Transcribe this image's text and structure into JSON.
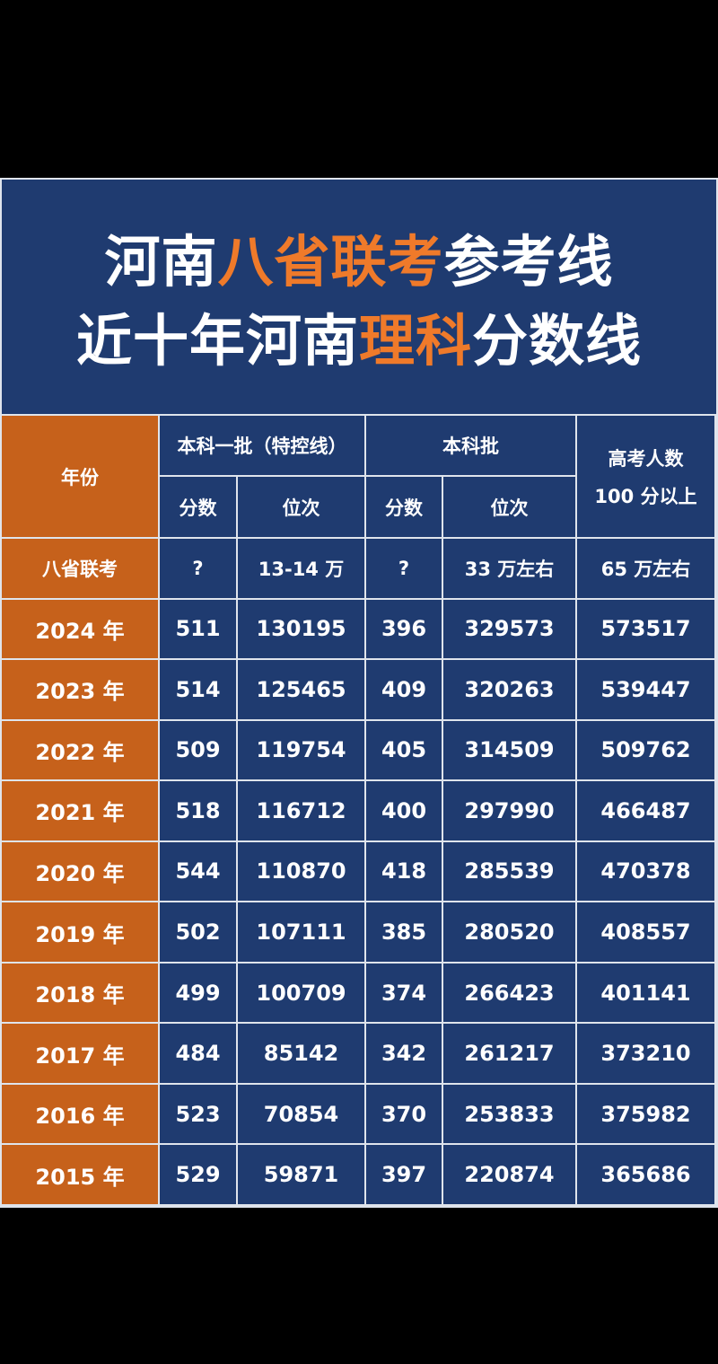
{
  "title": {
    "line1": [
      "河南",
      "八省联考",
      "参考线"
    ],
    "line2": [
      "近十年河南",
      "理科",
      "分数线"
    ]
  },
  "table": {
    "headers": {
      "year": "年份",
      "group1": "本科一批（特控线）",
      "group2": "本科批",
      "group3": [
        "高考人数",
        "100 分以上"
      ],
      "sub": [
        "分数",
        "位次",
        "分数",
        "位次"
      ]
    },
    "rows": [
      [
        "八省联考",
        "?",
        "13-14 万",
        "?",
        "33 万左右",
        "65 万左右"
      ],
      [
        "2024 年",
        "511",
        "130195",
        "396",
        "329573",
        "573517"
      ],
      [
        "2023 年",
        "514",
        "125465",
        "409",
        "320263",
        "539447"
      ],
      [
        "2022 年",
        "509",
        "119754",
        "405",
        "314509",
        "509762"
      ],
      [
        "2021 年",
        "518",
        "116712",
        "400",
        "297990",
        "466487"
      ],
      [
        "2020 年",
        "544",
        "110870",
        "418",
        "285539",
        "470378"
      ],
      [
        "2019 年",
        "502",
        "107111",
        "385",
        "280520",
        "408557"
      ],
      [
        "2018 年",
        "499",
        "100709",
        "374",
        "266423",
        "401141"
      ],
      [
        "2017 年",
        "484",
        "85142",
        "342",
        "261217",
        "373210"
      ],
      [
        "2016 年",
        "523",
        "70854",
        "370",
        "253833",
        "375982"
      ],
      [
        "2015 年",
        "529",
        "59871",
        "397",
        "220874",
        "365686"
      ]
    ]
  }
}
